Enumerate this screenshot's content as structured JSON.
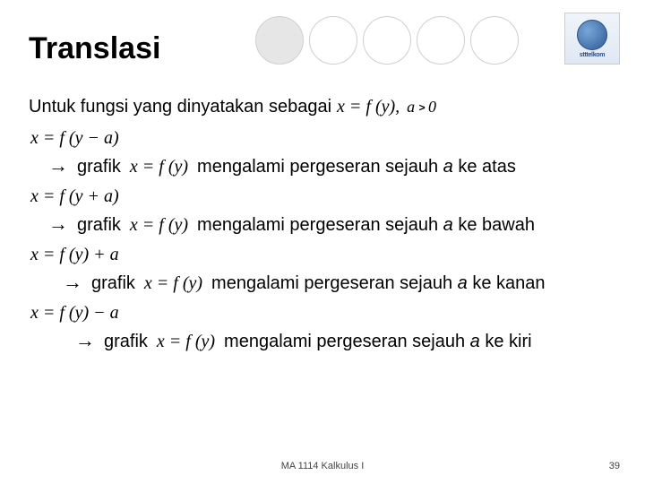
{
  "title": "Translasi",
  "logo_label": "stttelkom",
  "intro_text": "Untuk fungsi yang dinyatakan sebagai",
  "intro_formula": "x = f (y),",
  "condition_var": "a",
  "condition_zero": "0",
  "rules": [
    {
      "case_formula": "x = f (y − a)",
      "grafik_label": "grafik",
      "mid_formula": "x = f (y)",
      "desc_pre": "mengalami pergeseran sejauh ",
      "desc_em": "a",
      "desc_post": " ke atas",
      "indent": ""
    },
    {
      "case_formula": "x = f (y + a)",
      "grafik_label": "grafik",
      "mid_formula": "x = f (y)",
      "desc_pre": "mengalami pergeseran sejauh ",
      "desc_em": "a",
      "desc_post": " ke bawah",
      "indent": ""
    },
    {
      "case_formula": "x = f (y) + a",
      "grafik_label": "grafik",
      "mid_formula": "x = f (y)",
      "desc_pre": "mengalami pergeseran sejauh ",
      "desc_em": "a",
      "desc_post": " ke kanan",
      "indent": "indent-1"
    },
    {
      "case_formula": "x = f (y) − a",
      "grafik_label": "grafik",
      "mid_formula": "x = f (y)",
      "desc_pre": "mengalami pergeseran sejauh ",
      "desc_em": "a",
      "desc_post": " ke kiri",
      "indent": "indent-2"
    }
  ],
  "footer": "MA 1114 Kalkulus I",
  "page_number": "39",
  "colors": {
    "text": "#000000",
    "circle_border": "#cfcfcf",
    "circle_fill": "#e6e6e6",
    "logo_blue": "#2d5a96"
  }
}
